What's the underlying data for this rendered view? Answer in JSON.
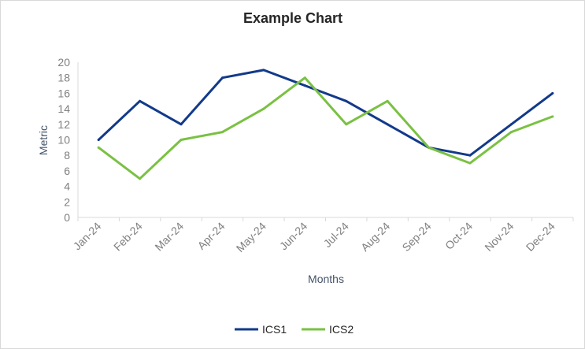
{
  "chart_data": {
    "type": "line",
    "title": "Example Chart",
    "xlabel": "Months",
    "ylabel": "Metric",
    "categories": [
      "Jan-24",
      "Feb-24",
      "Mar-24",
      "Apr-24",
      "May-24",
      "Jun-24",
      "Jul-24",
      "Aug-24",
      "Sep-24",
      "Oct-24",
      "Nov-24",
      "Dec-24"
    ],
    "ylim": [
      0,
      20
    ],
    "yticks": [
      "0",
      "2",
      "4",
      "6",
      "8",
      "10",
      "12",
      "14",
      "16",
      "18",
      "20"
    ],
    "grid": false,
    "legend_position": "bottom",
    "series": [
      {
        "name": "ICS1",
        "color": "#123a8a",
        "values": [
          10,
          15,
          12,
          18,
          19,
          17,
          15,
          12,
          9,
          8,
          12,
          16
        ]
      },
      {
        "name": "ICS2",
        "color": "#7ac143",
        "values": [
          9,
          5,
          10,
          11,
          14,
          18,
          12,
          15,
          9,
          7,
          11,
          13
        ]
      }
    ]
  }
}
